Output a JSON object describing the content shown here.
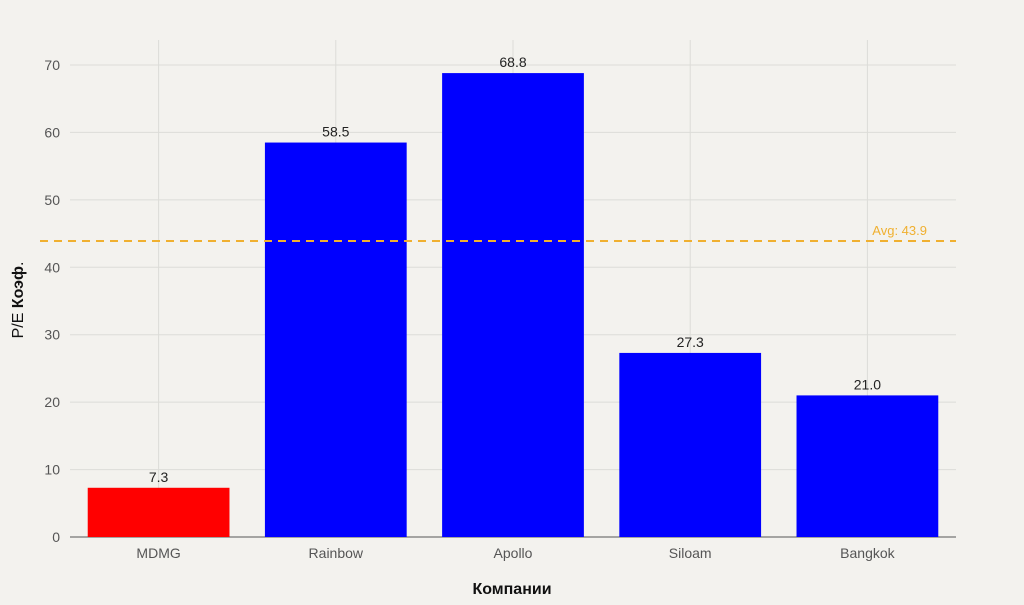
{
  "chart_data": {
    "type": "bar",
    "categories": [
      "MDMG",
      "Rainbow",
      "Apollo",
      "Siloam",
      "Bangkok"
    ],
    "values": [
      7.3,
      58.5,
      68.8,
      27.3,
      21.0
    ],
    "data_labels": [
      "7.3",
      "58.5",
      "68.8",
      "27.3",
      "21.0"
    ],
    "bar_colors": [
      "#ff0000",
      "#0000ff",
      "#0000ff",
      "#0000ff",
      "#0000ff"
    ],
    "xlabel": "Компании",
    "ylabel_prefix": "P/E ",
    "ylabel_bold": "Коэф",
    "ylabel_suffix": ".",
    "ylim": [
      0,
      70
    ],
    "yticks": [
      0,
      10,
      20,
      30,
      40,
      50,
      60,
      70
    ],
    "ytick_labels": [
      "0",
      "10",
      "20",
      "30",
      "40",
      "50",
      "60",
      "70"
    ],
    "grid": true,
    "reference_line": {
      "value": 43.9,
      "label": "Avg: 43.9",
      "color": "#f0b030",
      "style": "dashed"
    }
  }
}
